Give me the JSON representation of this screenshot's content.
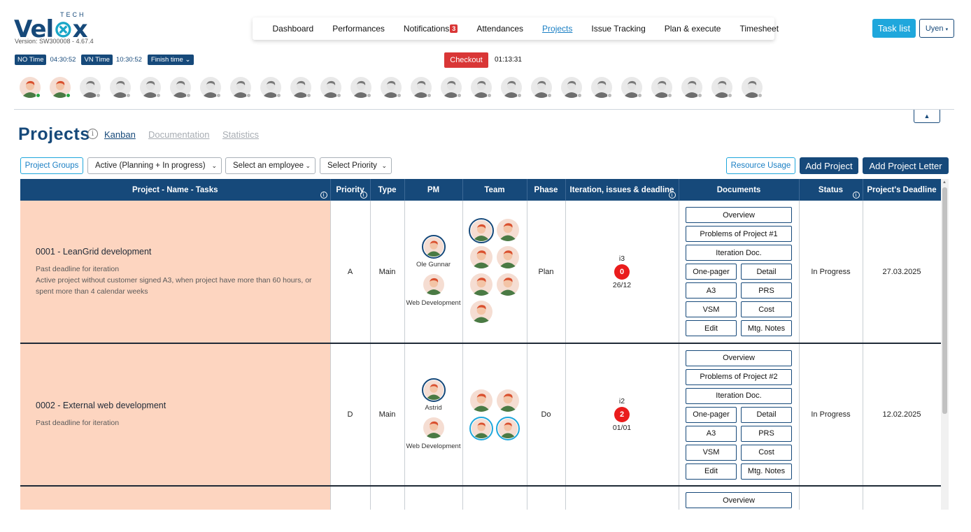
{
  "brand": {
    "name": "Velox",
    "tag": "TECH",
    "version": "Version: SW300008 - 4.67.4"
  },
  "nav": {
    "items": [
      "Dashboard",
      "Performances",
      "Notifications",
      "Attendances",
      "Projects",
      "Issue Tracking",
      "Plan & execute",
      "Timesheet"
    ],
    "notifications_count": "3",
    "active": "Projects"
  },
  "header_right": {
    "task_list": "Task list",
    "user": "Uyen"
  },
  "timebar": {
    "no_label": "NO Time",
    "no_value": "04:30:52",
    "vn_label": "VN Time",
    "vn_value": "10:30:52",
    "finish_label": "Finish time"
  },
  "checkout": {
    "label": "Checkout",
    "elapsed": "01:13:31"
  },
  "avatars": {
    "count": 25,
    "online": [
      0,
      1
    ]
  },
  "page": {
    "title": "Projects",
    "tabs": [
      {
        "label": "Kanban",
        "active": true
      },
      {
        "label": "Documentation",
        "active": false
      },
      {
        "label": "Statistics",
        "active": false
      }
    ]
  },
  "filters": {
    "project_groups": "Project Groups",
    "status_select": "Active (Planning + In progress)",
    "employee_select": "Select an employee",
    "priority_select": "Select Priority",
    "resource_usage": "Resource Usage",
    "add_project": "Add Project",
    "add_project_letter": "Add Project Letter"
  },
  "table": {
    "headers": [
      "Project - Name - Tasks",
      "Priority",
      "Type",
      "PM",
      "Team",
      "Phase",
      "Iteration, issues & deadline",
      "Documents",
      "Status",
      "Project's Deadline"
    ],
    "rows": [
      {
        "title": "0001 - LeanGrid development",
        "notes": [
          "Past deadline for iteration",
          "Active project without customer signed A3, when project have more than 60 hours, or spent more than 4 calendar weeks"
        ],
        "priority": "A",
        "type": "Main",
        "pm": "Ole Gunnar",
        "dept": "Web Development",
        "phase": "Plan",
        "iteration": "i3",
        "issues": "0",
        "iter_deadline": "26/12",
        "docs": [
          "Overview",
          "Problems of Project #1",
          "Iteration Doc.",
          "One-pager",
          "Detail",
          "A3",
          "PRS",
          "VSM",
          "Cost",
          "Edit",
          "Mtg. Notes"
        ],
        "status": "In Progress",
        "deadline": "27.03.2025"
      },
      {
        "title": "0002 - External web development",
        "notes": [
          "Past deadline for iteration"
        ],
        "priority": "D",
        "type": "Main",
        "pm": "Astrid",
        "dept": "Web Development",
        "phase": "Do",
        "iteration": "i2",
        "issues": "2",
        "iter_deadline": "01/01",
        "docs": [
          "Overview",
          "Problems of Project #2",
          "Iteration Doc.",
          "One-pager",
          "Detail",
          "A3",
          "PRS",
          "VSM",
          "Cost",
          "Edit",
          "Mtg. Notes"
        ],
        "status": "In Progress",
        "deadline": "12.02.2025"
      },
      {
        "docs": [
          "Overview"
        ]
      }
    ]
  }
}
